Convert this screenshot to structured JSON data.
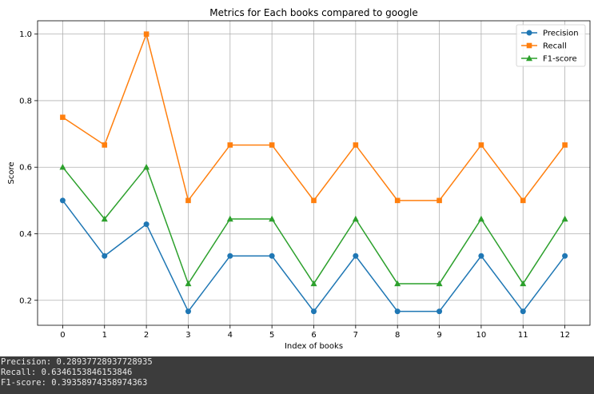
{
  "chart_data": {
    "type": "line",
    "title": "Metrics for Each books compared to google",
    "xlabel": "Index of books",
    "ylabel": "Score",
    "x": [
      0,
      1,
      2,
      3,
      4,
      5,
      6,
      7,
      8,
      9,
      10,
      11,
      12
    ],
    "xlim": [
      -0.6,
      12.6
    ],
    "ylim": [
      0.125,
      1.04
    ],
    "yticks": [
      0.2,
      0.4,
      0.6,
      0.8,
      1.0
    ],
    "ytick_labels": [
      "0.2",
      "0.4",
      "0.6",
      "0.8",
      "1.0"
    ],
    "grid": true,
    "legend_position": "top-right",
    "series": [
      {
        "name": "Precision",
        "color": "#1f77b4",
        "marker": "circle",
        "values": [
          0.5,
          0.3333,
          0.4286,
          0.1667,
          0.3333,
          0.3333,
          0.1667,
          0.3333,
          0.1667,
          0.1667,
          0.3333,
          0.1667,
          0.3333
        ]
      },
      {
        "name": "Recall",
        "color": "#ff7f0e",
        "marker": "square",
        "values": [
          0.75,
          0.6667,
          1.0,
          0.5,
          0.6667,
          0.6667,
          0.5,
          0.6667,
          0.5,
          0.5,
          0.6667,
          0.5,
          0.6667
        ]
      },
      {
        "name": "F1-score",
        "color": "#2ca02c",
        "marker": "triangle",
        "values": [
          0.6,
          0.4444,
          0.6,
          0.25,
          0.4444,
          0.4444,
          0.25,
          0.4444,
          0.25,
          0.25,
          0.4444,
          0.25,
          0.4444
        ]
      }
    ]
  },
  "output": {
    "lines": [
      "Precision: 0.28937728937728935",
      "Recall: 0.6346153846153846",
      "F1-score: 0.39358974358974363"
    ]
  }
}
